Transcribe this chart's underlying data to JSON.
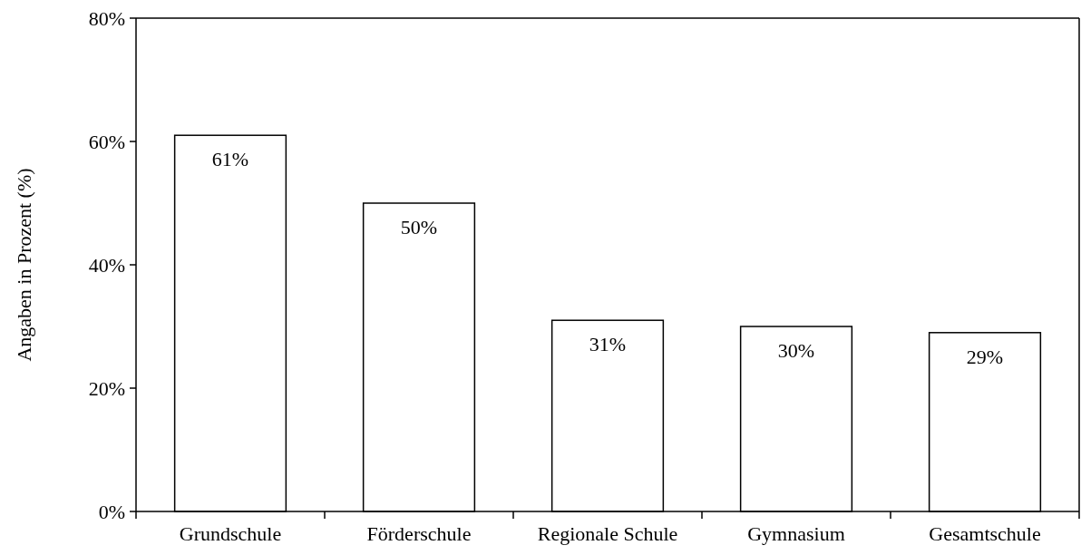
{
  "chart_data": {
    "type": "bar",
    "ylabel": "Angaben in Prozent (%)",
    "categories": [
      "Grundschule",
      "Förderschule",
      "Regionale Schule",
      "Gymnasium",
      "Gesamtschule"
    ],
    "values": [
      61,
      50,
      31,
      30,
      29
    ],
    "value_labels": [
      "61%",
      "50%",
      "31%",
      "30%",
      "29%"
    ],
    "color": "#ffffff",
    "ylim": [
      0,
      80
    ],
    "yticks": [
      {
        "value": 0,
        "label": "0%"
      },
      {
        "value": 20,
        "label": "20%"
      },
      {
        "value": 40,
        "label": "40%"
      },
      {
        "value": 60,
        "label": "60%"
      },
      {
        "value": 80,
        "label": "80%"
      }
    ],
    "grid": false
  }
}
